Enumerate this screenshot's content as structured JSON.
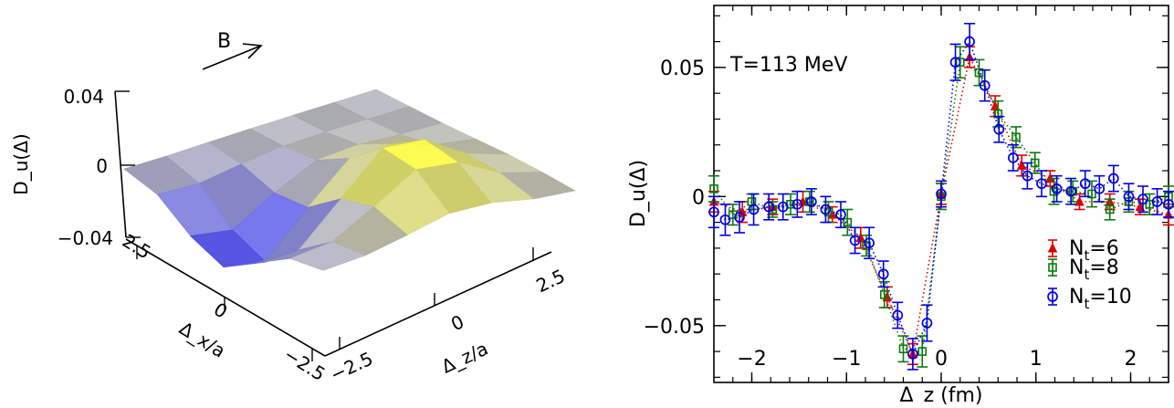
{
  "chart_data": [
    {
      "type": "surface",
      "zlabel": "D_u(Δ)",
      "xlabel": "Δ_z/a",
      "ylabel": "Δ_x/a",
      "arrow_label": "B",
      "z_ticks": [
        {
          "v": 0.04,
          "label": "0.04"
        },
        {
          "v": 0,
          "label": "0"
        },
        {
          "v": -0.04,
          "label": "−0.04"
        }
      ],
      "x_ticks": [
        {
          "v": -2.5,
          "label": "−2.5"
        },
        {
          "v": 0,
          "label": "0"
        },
        {
          "v": 2.5,
          "label": "2.5"
        }
      ],
      "y_ticks": [
        {
          "v": 2.5,
          "label": "2.5"
        },
        {
          "v": 0,
          "label": "0"
        },
        {
          "v": -2.5,
          "label": "−2.5"
        }
      ],
      "colors": {
        "negative": "#4b4bff",
        "positive": "#ffff3c",
        "neutral": "#b9b9c2"
      }
    },
    {
      "type": "scatter",
      "annotation": "T=113 MeV",
      "xlabel": "Δ_z (fm)",
      "ylabel": "D_u(Δ)",
      "xlim": [
        -2.4,
        2.4
      ],
      "ylim": [
        -0.072,
        0.074
      ],
      "x_ticks": [
        {
          "v": -2,
          "label": "−2"
        },
        {
          "v": -1,
          "label": "−1"
        },
        {
          "v": 0,
          "label": "0"
        },
        {
          "v": 1,
          "label": "1"
        },
        {
          "v": 2,
          "label": "2"
        }
      ],
      "y_ticks": [
        {
          "v": 0.05,
          "label": "0.05"
        },
        {
          "v": 0,
          "label": "0"
        },
        {
          "v": -0.05,
          "label": "−0.05"
        }
      ],
      "legend_position": "bottom-right",
      "series": [
        {
          "name": "N_t=6",
          "legend_main": "N",
          "legend_sub": "t",
          "legend_rest": "=6",
          "marker": "triangle",
          "color": "#e00000",
          "points": [
            {
              "x": -2.4,
              "y": -0.002,
              "err": 0.004
            },
            {
              "x": -2.1,
              "y": -0.006,
              "err": 0.004
            },
            {
              "x": -1.78,
              "y": -0.004,
              "err": 0.003
            },
            {
              "x": -1.46,
              "y": -0.002,
              "err": 0.004
            },
            {
              "x": -1.15,
              "y": -0.007,
              "err": 0.003
            },
            {
              "x": -0.85,
              "y": -0.016,
              "err": 0.004
            },
            {
              "x": -0.57,
              "y": -0.039,
              "err": 0.004
            },
            {
              "x": -0.3,
              "y": -0.061,
              "err": 0.004
            },
            {
              "x": 0.0,
              "y": 0.001,
              "err": 0.004
            },
            {
              "x": 0.3,
              "y": 0.054,
              "err": 0.004
            },
            {
              "x": 0.57,
              "y": 0.035,
              "err": 0.004
            },
            {
              "x": 0.85,
              "y": 0.012,
              "err": 0.004
            },
            {
              "x": 1.15,
              "y": 0.007,
              "err": 0.003
            },
            {
              "x": 1.46,
              "y": -0.002,
              "err": 0.003
            },
            {
              "x": 1.78,
              "y": -0.002,
              "err": 0.003
            },
            {
              "x": 2.1,
              "y": -0.004,
              "err": 0.003
            },
            {
              "x": 2.4,
              "y": -0.007,
              "err": 0.004
            }
          ]
        },
        {
          "name": "N_t=8",
          "legend_main": "N",
          "legend_sub": "t",
          "legend_rest": "=8",
          "marker": "square",
          "color": "#0b7a0b",
          "points": [
            {
              "x": -2.4,
              "y": 0.003,
              "err": 0.005
            },
            {
              "x": -2.2,
              "y": -0.007,
              "err": 0.004
            },
            {
              "x": -2.0,
              "y": -0.002,
              "err": 0.003
            },
            {
              "x": -1.78,
              "y": -0.005,
              "err": 0.003
            },
            {
              "x": -1.59,
              "y": -0.003,
              "err": 0.004
            },
            {
              "x": -1.39,
              "y": -0.002,
              "err": 0.004
            },
            {
              "x": -1.19,
              "y": -0.006,
              "err": 0.004
            },
            {
              "x": -0.99,
              "y": -0.01,
              "err": 0.005
            },
            {
              "x": -0.79,
              "y": -0.019,
              "err": 0.004
            },
            {
              "x": -0.6,
              "y": -0.038,
              "err": 0.005
            },
            {
              "x": -0.4,
              "y": -0.059,
              "err": 0.005
            },
            {
              "x": -0.2,
              "y": -0.06,
              "err": 0.006
            },
            {
              "x": 0.0,
              "y": 0.0,
              "err": 0.005
            },
            {
              "x": 0.2,
              "y": 0.052,
              "err": 0.006
            },
            {
              "x": 0.4,
              "y": 0.048,
              "err": 0.005
            },
            {
              "x": 0.6,
              "y": 0.032,
              "err": 0.005
            },
            {
              "x": 0.79,
              "y": 0.023,
              "err": 0.004
            },
            {
              "x": 0.99,
              "y": 0.013,
              "err": 0.004
            },
            {
              "x": 1.19,
              "y": 0.002,
              "err": 0.005
            },
            {
              "x": 1.39,
              "y": 0.002,
              "err": 0.004
            },
            {
              "x": 1.59,
              "y": 0.001,
              "err": 0.005
            },
            {
              "x": 1.78,
              "y": -0.005,
              "err": 0.004
            },
            {
              "x": 1.98,
              "y": -0.002,
              "err": 0.004
            },
            {
              "x": 2.2,
              "y": -0.003,
              "err": 0.004
            },
            {
              "x": 2.4,
              "y": 0.0,
              "err": 0.004
            }
          ]
        },
        {
          "name": "N_t=10",
          "legend_main": "N",
          "legend_sub": "t",
          "legend_rest": "=10",
          "marker": "circle",
          "color": "#0000e0",
          "points": [
            {
              "x": -2.4,
              "y": -0.006,
              "err": 0.006
            },
            {
              "x": -2.28,
              "y": -0.009,
              "err": 0.006
            },
            {
              "x": -2.13,
              "y": -0.008,
              "err": 0.006
            },
            {
              "x": -1.98,
              "y": -0.005,
              "err": 0.006
            },
            {
              "x": -1.82,
              "y": -0.004,
              "err": 0.005
            },
            {
              "x": -1.67,
              "y": -0.004,
              "err": 0.005
            },
            {
              "x": -1.52,
              "y": -0.003,
              "err": 0.005
            },
            {
              "x": -1.37,
              "y": -0.002,
              "err": 0.005
            },
            {
              "x": -1.22,
              "y": -0.005,
              "err": 0.005
            },
            {
              "x": -1.06,
              "y": -0.007,
              "err": 0.005
            },
            {
              "x": -0.91,
              "y": -0.017,
              "err": 0.005
            },
            {
              "x": -0.76,
              "y": -0.018,
              "err": 0.006
            },
            {
              "x": -0.61,
              "y": -0.03,
              "err": 0.005
            },
            {
              "x": -0.46,
              "y": -0.046,
              "err": 0.005
            },
            {
              "x": -0.3,
              "y": -0.061,
              "err": 0.006
            },
            {
              "x": -0.15,
              "y": -0.049,
              "err": 0.007
            },
            {
              "x": 0.0,
              "y": 0.001,
              "err": 0.005
            },
            {
              "x": 0.15,
              "y": 0.052,
              "err": 0.007
            },
            {
              "x": 0.3,
              "y": 0.06,
              "err": 0.007
            },
            {
              "x": 0.46,
              "y": 0.043,
              "err": 0.006
            },
            {
              "x": 0.61,
              "y": 0.026,
              "err": 0.005
            },
            {
              "x": 0.76,
              "y": 0.015,
              "err": 0.005
            },
            {
              "x": 0.91,
              "y": 0.008,
              "err": 0.005
            },
            {
              "x": 1.06,
              "y": 0.005,
              "err": 0.005
            },
            {
              "x": 1.22,
              "y": 0.003,
              "err": 0.005
            },
            {
              "x": 1.37,
              "y": 0.002,
              "err": 0.005
            },
            {
              "x": 1.52,
              "y": 0.005,
              "err": 0.005
            },
            {
              "x": 1.67,
              "y": 0.003,
              "err": 0.005
            },
            {
              "x": 1.82,
              "y": 0.007,
              "err": 0.005
            },
            {
              "x": 1.98,
              "y": 0.0,
              "err": 0.005
            },
            {
              "x": 2.13,
              "y": -0.001,
              "err": 0.005
            },
            {
              "x": 2.28,
              "y": -0.002,
              "err": 0.005
            },
            {
              "x": 2.4,
              "y": -0.003,
              "err": 0.005
            }
          ]
        }
      ]
    }
  ]
}
